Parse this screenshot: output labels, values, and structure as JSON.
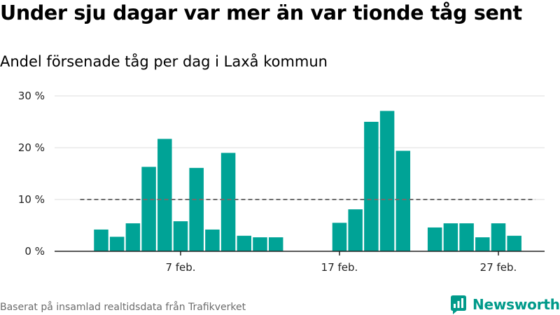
{
  "header": {
    "title": "Under sju dagar var mer än var tionde tåg sent",
    "subtitle": "Andel försenade tåg per dag i Laxå kommun"
  },
  "footer": {
    "source": "Baserat på insamlad realtidsdata från Trafikverket",
    "brand": "Newsworthy"
  },
  "colors": {
    "bar": "#00a396",
    "reference_line": "#6e6e6e",
    "grid": "#dddddd",
    "axis": "#222222",
    "brand": "#009a8a"
  },
  "icons": {
    "brand_logo": "newsworthy-bar-chart-logo-icon"
  },
  "chart_data": {
    "type": "bar",
    "categories": [
      "2 feb.",
      "3 feb.",
      "4 feb.",
      "5 feb.",
      "6 feb.",
      "7 feb.",
      "8 feb.",
      "9 feb.",
      "10 feb.",
      "11 feb.",
      "12 feb.",
      "13 feb.",
      "14 feb.",
      "15 feb.",
      "16 feb.",
      "17 feb.",
      "18 feb.",
      "19 feb.",
      "20 feb.",
      "21 feb.",
      "22 feb.",
      "23 feb.",
      "24 feb.",
      "25 feb.",
      "26 feb.",
      "27 feb.",
      "28 feb."
    ],
    "values": [
      4.2,
      2.8,
      5.4,
      16.3,
      21.7,
      5.8,
      16.1,
      4.2,
      19.0,
      3.0,
      2.7,
      2.7,
      null,
      null,
      null,
      5.5,
      8.1,
      25.0,
      27.1,
      19.4,
      null,
      4.6,
      5.4,
      5.4,
      2.7,
      5.4,
      3.0
    ],
    "y_ticks": [
      0,
      10,
      20,
      30
    ],
    "y_tick_labels": [
      "0 %",
      "10 %",
      "20 %",
      "30 %"
    ],
    "x_tick_labels": [
      "7 feb.",
      "17 feb.",
      "27 feb."
    ],
    "x_tick_categories": [
      "7 feb.",
      "17 feb.",
      "27 feb."
    ],
    "ylim": [
      0,
      30
    ],
    "reference_line": {
      "value": 10,
      "style": "dashed"
    },
    "grid": "horizontal",
    "legend": "none"
  }
}
